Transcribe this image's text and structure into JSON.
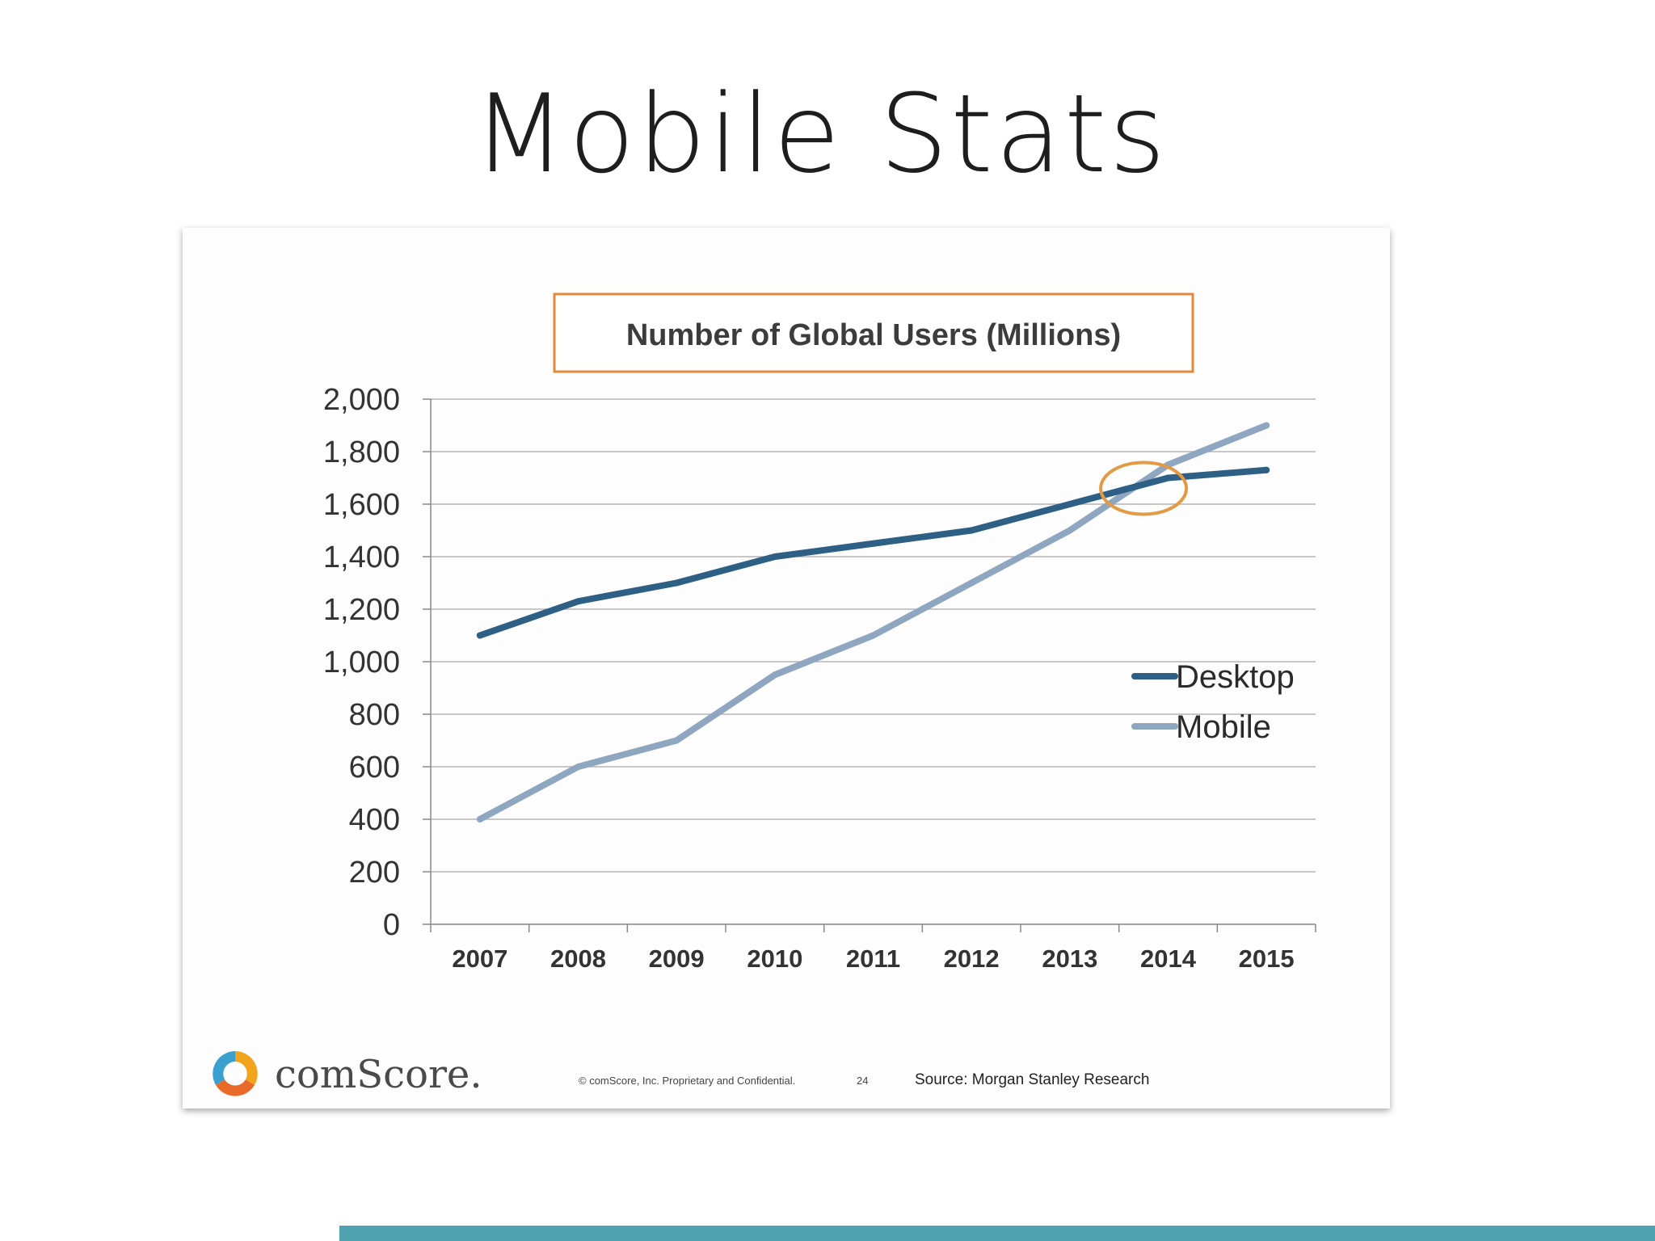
{
  "slide": {
    "title": "Mobile Stats"
  },
  "chart_data": {
    "type": "line",
    "title": "Number of Global Users (Millions)",
    "xlabel": "",
    "ylabel": "",
    "categories": [
      "2007",
      "2008",
      "2009",
      "2010",
      "2011",
      "2012",
      "2013",
      "2014",
      "2015"
    ],
    "ylim": [
      0,
      2000
    ],
    "yticks": [
      0,
      200,
      400,
      600,
      800,
      1000,
      1200,
      1400,
      1600,
      1800,
      2000
    ],
    "ytick_labels": [
      "0",
      "200",
      "400",
      "600",
      "800",
      "1,000",
      "1,200",
      "1,400",
      "1,600",
      "1,800",
      "2,000"
    ],
    "grid": true,
    "legend_position": "right",
    "series": [
      {
        "name": "Desktop",
        "color": "#2e5f85",
        "values": [
          1100,
          1230,
          1300,
          1400,
          1450,
          1500,
          1600,
          1700,
          1730
        ]
      },
      {
        "name": "Mobile",
        "color": "#8fa6c1",
        "values": [
          400,
          600,
          700,
          950,
          1100,
          1300,
          1500,
          1750,
          1900
        ]
      }
    ],
    "annotation": {
      "type": "circle",
      "description": "crossover highlight",
      "x": 2013.75,
      "y": 1660,
      "color": "#e39a45"
    }
  },
  "footer": {
    "logo_text": "comScore.",
    "copyright": "© comScore, Inc.  Proprietary and Confidential.",
    "page_number": "24",
    "source": "Source: Morgan Stanley Research"
  },
  "colors": {
    "accent_bar": "#4fa3ae",
    "title_box_border": "#e3893b",
    "grid": "#b5b5b5"
  }
}
